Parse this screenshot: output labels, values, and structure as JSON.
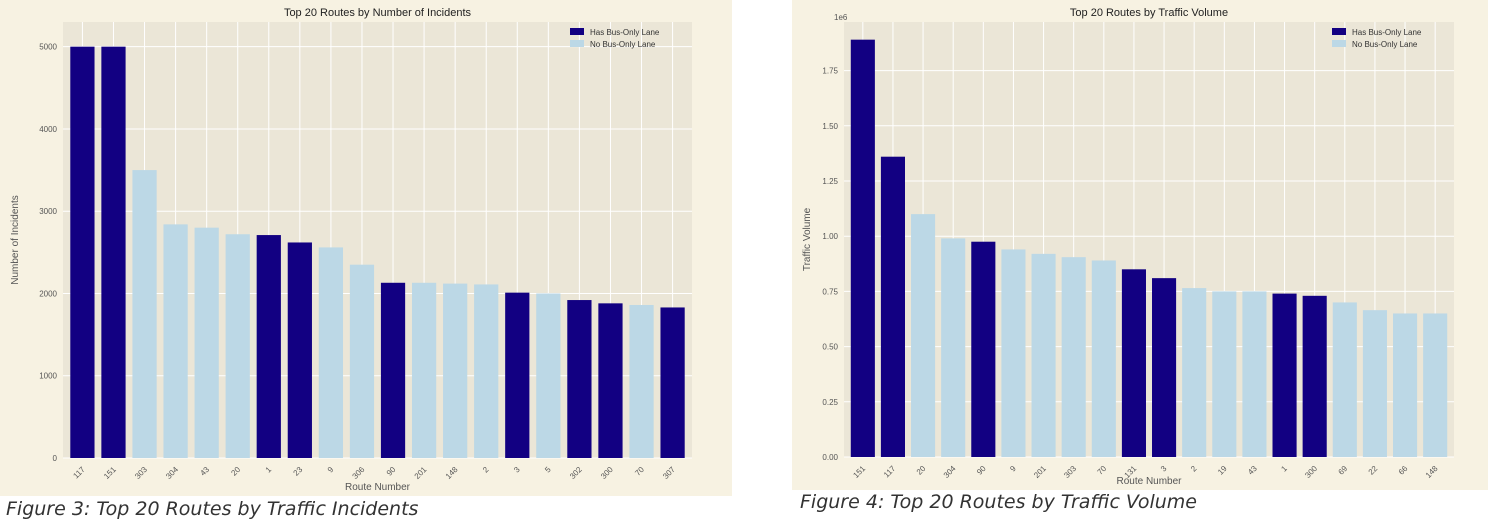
{
  "theme": {
    "figure_bg": "#f7f2e2",
    "plot_bg": "#ebe6d7",
    "grid": "#ffffff",
    "has_lane_color": "#120082",
    "no_lane_color": "#bcd8e6",
    "text": "#555555"
  },
  "captions": {
    "left": "Figure 3: Top 20 Routes by Traffic Incidents",
    "right": "Figure 4: Top 20 Routes by Traffic Volume"
  },
  "chart_data": [
    {
      "type": "bar",
      "title": "Top 20 Routes by Number of Incidents",
      "xlabel": "Route Number",
      "ylabel": "Number of Incidents",
      "ylim": [
        0,
        5300
      ],
      "yticks": [
        0,
        1000,
        2000,
        3000,
        4000,
        5000
      ],
      "ytick_labels": [
        "0",
        "1000",
        "2000",
        "3000",
        "4000",
        "5000"
      ],
      "offset_label": "",
      "grid": true,
      "legend_position": "top-right",
      "legend": [
        {
          "label": "Has Bus-Only Lane",
          "color": "#120082"
        },
        {
          "label": "No Bus-Only Lane",
          "color": "#bcd8e6"
        }
      ],
      "categories": [
        "117",
        "151",
        "303",
        "304",
        "43",
        "20",
        "1",
        "23",
        "9",
        "306",
        "90",
        "201",
        "148",
        "2",
        "3",
        "5",
        "302",
        "300",
        "70",
        "307"
      ],
      "values": [
        5000,
        5000,
        3500,
        2840,
        2800,
        2720,
        2710,
        2620,
        2560,
        2350,
        2130,
        2130,
        2120,
        2110,
        2010,
        2000,
        1920,
        1880,
        1860,
        1830
      ],
      "has_bus_only_lane": [
        true,
        true,
        false,
        false,
        false,
        false,
        true,
        true,
        false,
        false,
        true,
        false,
        false,
        false,
        true,
        false,
        true,
        true,
        false,
        true
      ]
    },
    {
      "type": "bar",
      "title": "Top 20 Routes by Traffic Volume",
      "xlabel": "Route Number",
      "ylabel": "Traffic Volume",
      "ylim": [
        0,
        1.97
      ],
      "yticks": [
        0,
        0.25,
        0.5,
        0.75,
        1.0,
        1.25,
        1.5,
        1.75
      ],
      "ytick_labels": [
        "0.00",
        "0.25",
        "0.50",
        "0.75",
        "1.00",
        "1.25",
        "1.50",
        "1.75"
      ],
      "offset_label": "1e6",
      "grid": true,
      "legend_position": "top-right",
      "legend": [
        {
          "label": "Has Bus-Only Lane",
          "color": "#120082"
        },
        {
          "label": "No Bus-Only Lane",
          "color": "#bcd8e6"
        }
      ],
      "categories": [
        "151",
        "117",
        "20",
        "304",
        "90",
        "9",
        "201",
        "303",
        "70",
        "131",
        "3",
        "2",
        "19",
        "43",
        "1",
        "300",
        "69",
        "22",
        "66",
        "148"
      ],
      "values": [
        1.89,
        1.36,
        1.1,
        0.99,
        0.975,
        0.94,
        0.92,
        0.905,
        0.89,
        0.85,
        0.81,
        0.765,
        0.75,
        0.75,
        0.74,
        0.73,
        0.7,
        0.665,
        0.65,
        0.65
      ],
      "has_bus_only_lane": [
        true,
        true,
        false,
        false,
        true,
        false,
        false,
        false,
        false,
        true,
        true,
        false,
        false,
        false,
        true,
        true,
        false,
        false,
        false,
        false
      ]
    }
  ]
}
